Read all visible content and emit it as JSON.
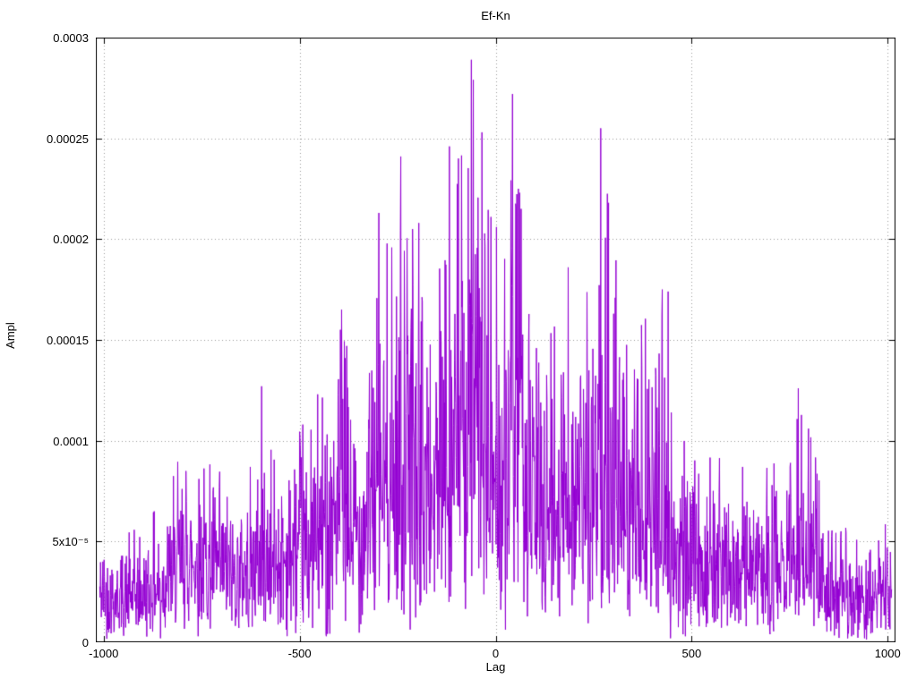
{
  "chart_data": {
    "type": "line",
    "title": "Ef-Kn",
    "xlabel": "Lag",
    "ylabel": "Ampl",
    "xlim": [
      -1020,
      1020
    ],
    "ylim": [
      0,
      0.0003
    ],
    "grid": true,
    "grid_style": "dotted",
    "grid_color": "#9a9a9a",
    "border_color": "#000000",
    "line_color": "#9400d3",
    "legend": "none",
    "x_ticks": [
      {
        "value": -1000,
        "label": "-1000"
      },
      {
        "value": -500,
        "label": "-500"
      },
      {
        "value": 0,
        "label": "0"
      },
      {
        "value": 500,
        "label": "500"
      },
      {
        "value": 1000,
        "label": "1000"
      }
    ],
    "y_ticks": [
      {
        "value": 0,
        "label": "0"
      },
      {
        "value": 5e-05,
        "label": "5x10⁻⁵"
      },
      {
        "value": 0.0001,
        "label": "0.0001"
      },
      {
        "value": 0.00015,
        "label": "0.00015"
      },
      {
        "value": 0.0002,
        "label": "0.0002"
      },
      {
        "value": 0.00025,
        "label": "0.00025"
      },
      {
        "value": 0.0003,
        "label": "0.0003"
      }
    ],
    "description": "Dense noisy amplitude-vs-lag trace (cross-correlation magnitude), envelope peaking near lag 0 at ~0.00029 and decaying toward ~0.00005 at lags ±1000",
    "generation": {
      "x_start": -1010,
      "x_end": 1010,
      "step": 1,
      "seed": 42,
      "noise_sigma": 0.34,
      "min_ratio": 0.03,
      "envelope": [
        [
          -1010,
          6e-05
        ],
        [
          -960,
          5.2e-05
        ],
        [
          -900,
          5.8e-05
        ],
        [
          -850,
          7e-05
        ],
        [
          -820,
          8.5e-05
        ],
        [
          -790,
          0.0001
        ],
        [
          -760,
          0.0001
        ],
        [
          -730,
          9.5e-05
        ],
        [
          -700,
          8.5e-05
        ],
        [
          -660,
          8e-05
        ],
        [
          -630,
          8.5e-05
        ],
        [
          -600,
          0.0001
        ],
        [
          -570,
          9.5e-05
        ],
        [
          -540,
          0.0001
        ],
        [
          -510,
          0.000105
        ],
        [
          -480,
          0.00011
        ],
        [
          -450,
          0.000125
        ],
        [
          -420,
          0.000145
        ],
        [
          -395,
          0.000165
        ],
        [
          -370,
          0.000135
        ],
        [
          -340,
          0.000135
        ],
        [
          -310,
          0.000175
        ],
        [
          -290,
          0.0002
        ],
        [
          -260,
          0.000195
        ],
        [
          -240,
          0.00023
        ],
        [
          -220,
          0.00021
        ],
        [
          -200,
          0.00021
        ],
        [
          -180,
          0.0002
        ],
        [
          -160,
          0.000175
        ],
        [
          -140,
          0.0002
        ],
        [
          -120,
          0.00024
        ],
        [
          -100,
          0.000235
        ],
        [
          -80,
          0.000245
        ],
        [
          -60,
          0.00028
        ],
        [
          -40,
          0.00025
        ],
        [
          -20,
          0.000215
        ],
        [
          0,
          0.000205
        ],
        [
          20,
          0.00019
        ],
        [
          40,
          0.000265
        ],
        [
          60,
          0.000225
        ],
        [
          80,
          0.000185
        ],
        [
          100,
          0.00017
        ],
        [
          130,
          0.000165
        ],
        [
          160,
          0.00017
        ],
        [
          190,
          0.000185
        ],
        [
          220,
          0.000165
        ],
        [
          250,
          0.000185
        ],
        [
          270,
          0.000245
        ],
        [
          290,
          0.000215
        ],
        [
          320,
          0.00017
        ],
        [
          350,
          0.00015
        ],
        [
          380,
          0.00016
        ],
        [
          420,
          0.00017
        ],
        [
          450,
          0.00011
        ],
        [
          480,
          0.0001
        ],
        [
          520,
          9.5e-05
        ],
        [
          560,
          9e-05
        ],
        [
          600,
          9.5e-05
        ],
        [
          640,
          8.5e-05
        ],
        [
          680,
          8.5e-05
        ],
        [
          720,
          9e-05
        ],
        [
          755,
          0.00011
        ],
        [
          775,
          0.000125
        ],
        [
          800,
          0.000105
        ],
        [
          830,
          8e-05
        ],
        [
          860,
          6.5e-05
        ],
        [
          900,
          5.5e-05
        ],
        [
          950,
          4.5e-05
        ],
        [
          1010,
          6.8e-05
        ]
      ],
      "forced_peaks": [
        [
          -597,
          0.000127
        ],
        [
          -393,
          0.000165
        ],
        [
          -298,
          0.000213
        ],
        [
          -242,
          0.000241
        ],
        [
          -212,
          0.000205
        ],
        [
          -118,
          0.000246
        ],
        [
          -95,
          0.00024
        ],
        [
          -62,
          0.000289
        ],
        [
          -57,
          0.000279
        ],
        [
          -35,
          0.000253
        ],
        [
          2,
          0.000206
        ],
        [
          43,
          0.000272
        ],
        [
          58,
          0.000225
        ],
        [
          185,
          0.000186
        ],
        [
          268,
          0.000255
        ],
        [
          288,
          0.000218
        ],
        [
          425,
          0.000175
        ],
        [
          440,
          0.000174
        ],
        [
          772,
          0.000126
        ],
        [
          798,
          0.000106
        ]
      ],
      "forced_dips": [
        [
          -855,
          2e-06
        ],
        [
          -432,
          3e-06
        ],
        [
          446,
          2e-06
        ],
        [
          700,
          4e-06
        ],
        [
          941,
          2e-06
        ]
      ]
    }
  }
}
